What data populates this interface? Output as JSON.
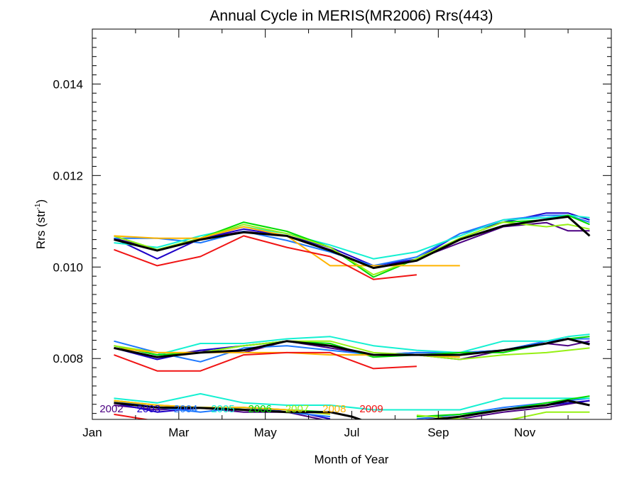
{
  "chart_data": {
    "type": "line",
    "title": "Annual Cycle in MERIS(MR2006) Rrs(443)",
    "xlabel": "Month of Year",
    "ylabel": "Rrs (str",
    "ylabel_sup": "-1",
    "ylabel_close": ")",
    "xlim": [
      0,
      12
    ],
    "ylim": [
      0.00667,
      0.0152
    ],
    "x_ticks": [
      {
        "value": 0,
        "label": "Jan"
      },
      {
        "value": 2,
        "label": "Mar"
      },
      {
        "value": 4,
        "label": "May"
      },
      {
        "value": 6,
        "label": "Jul"
      },
      {
        "value": 8,
        "label": "Sep"
      },
      {
        "value": 10,
        "label": "Nov"
      }
    ],
    "y_ticks": [
      {
        "value": 0.008,
        "label": "0.008"
      },
      {
        "value": 0.01,
        "label": "0.010"
      },
      {
        "value": 0.012,
        "label": "0.012"
      },
      {
        "value": 0.014,
        "label": "0.014"
      }
    ],
    "x_minor_step": 1,
    "y_minor_step": 0.0002,
    "grid": false,
    "legend": [
      {
        "label": "2002",
        "color": "#4B0082"
      },
      {
        "label": "2003",
        "color": "#1E00C8"
      },
      {
        "label": "2004",
        "color": "#1E78FF"
      },
      {
        "label": "2005",
        "color": "#14F0D2"
      },
      {
        "label": "2006",
        "color": "#00DC00"
      },
      {
        "label": "2007",
        "color": "#96F014"
      },
      {
        "label": "2008",
        "color": "#FFB400"
      },
      {
        "label": "2009",
        "color": "#F01414"
      }
    ],
    "series": [
      {
        "name": "2002",
        "color": "#4B0082",
        "groups": [
          {
            "x": [
              0.5,
              1.5,
              2.5,
              3.5,
              4.5,
              5.5,
              6.5,
              7.5,
              8.5,
              9.5,
              10.5,
              11,
              11.5
            ],
            "y": [
              0.01063,
              0.01038,
              0.01062,
              0.01078,
              0.01068,
              0.01038,
              0.00998,
              0.01017,
              0.01053,
              0.01088,
              0.01097,
              0.01079,
              0.01079
            ]
          },
          {
            "x": [
              0.5,
              1.5,
              2.5,
              3.5,
              4.5,
              5.5,
              6.5,
              7.5,
              8.5,
              9.5,
              10.5,
              11,
              11.5
            ],
            "y": [
              0.00823,
              0.00803,
              0.00818,
              0.00813,
              0.00838,
              0.00823,
              0.00808,
              0.00808,
              0.00798,
              0.00818,
              0.00833,
              0.00828,
              0.00838
            ]
          },
          {
            "x": [
              0.5,
              1.5,
              2.5,
              3.5,
              4.5,
              5.5
            ],
            "y": [
              0.00698,
              0.00688,
              0.00692,
              0.00683,
              0.00683,
              0.00663
            ]
          },
          {
            "x": [
              7.5,
              8.5,
              9.5,
              10.5,
              11.5
            ],
            "y": [
              0.00662,
              0.00668,
              0.00683,
              0.00693,
              0.00708
            ]
          }
        ]
      },
      {
        "name": "2003",
        "color": "#1E00C8",
        "groups": [
          {
            "x": [
              0.5,
              1.5,
              2.5,
              3.5,
              4.5,
              5.5,
              6.5,
              7.5,
              8.5,
              9.5,
              10.5,
              11,
              11.5
            ],
            "y": [
              0.01063,
              0.01018,
              0.01062,
              0.01083,
              0.01068,
              0.01043,
              0.01003,
              0.01017,
              0.01073,
              0.01098,
              0.01118,
              0.01118,
              0.01103
            ]
          },
          {
            "x": [
              0.5,
              1.5,
              2.5,
              3.5,
              4.5,
              5.5,
              6.5,
              7.5,
              8.5,
              9.5,
              10.5,
              11,
              11.5
            ],
            "y": [
              0.00823,
              0.00798,
              0.00818,
              0.00828,
              0.00838,
              0.00828,
              0.00808,
              0.00813,
              0.00813,
              0.00818,
              0.00838,
              0.00843,
              0.00833
            ]
          },
          {
            "x": [
              0.5,
              1.5,
              2.5,
              3.5,
              4.5,
              5.5
            ],
            "y": [
              0.00703,
              0.00683,
              0.00692,
              0.00688,
              0.00688,
              0.00668
            ]
          },
          {
            "x": [
              7.5,
              8.5,
              9.5,
              10.5,
              11.5
            ],
            "y": [
              0.00665,
              0.00673,
              0.00688,
              0.00698,
              0.00708
            ]
          }
        ]
      },
      {
        "name": "2004",
        "color": "#1E78FF",
        "groups": [
          {
            "x": [
              0.5,
              1.5,
              2.5,
              3.5,
              4.5,
              5.5,
              6.5,
              7.5,
              8.5,
              9.5,
              10.5,
              11,
              11.5
            ],
            "y": [
              0.01063,
              0.01063,
              0.01053,
              0.01078,
              0.01058,
              0.01033,
              0.01003,
              0.01022,
              0.01073,
              0.01103,
              0.01113,
              0.01113,
              0.01098
            ]
          },
          {
            "x": [
              0.5,
              1.5,
              2.5,
              3.5,
              4.5,
              5.5,
              6.5,
              7.5,
              8.5,
              9.5,
              10.5,
              11,
              11.5
            ],
            "y": [
              0.00838,
              0.00813,
              0.00793,
              0.00823,
              0.00828,
              0.00818,
              0.00808,
              0.00813,
              0.00813,
              0.00818,
              0.00838,
              0.00843,
              0.00843
            ]
          },
          {
            "x": [
              0.5,
              1.5,
              2.5,
              3.5,
              4.5,
              5.5
            ],
            "y": [
              0.00708,
              0.00693,
              0.00683,
              0.00693,
              0.00683,
              0.00673
            ]
          },
          {
            "x": [
              7.5,
              8.5,
              9.5,
              10.5,
              11.5
            ],
            "y": [
              0.00668,
              0.00678,
              0.00693,
              0.00703,
              0.00713
            ]
          }
        ]
      },
      {
        "name": "2005",
        "color": "#14F0D2",
        "groups": [
          {
            "x": [
              0.5,
              1.5,
              2.5,
              3.5,
              4.5,
              5.5,
              6.5,
              7.5,
              8.5,
              9.5,
              10.5,
              11,
              11.5
            ],
            "y": [
              0.01053,
              0.01043,
              0.01068,
              0.01088,
              0.01073,
              0.01048,
              0.01018,
              0.01033,
              0.01068,
              0.01103,
              0.01108,
              0.01113,
              0.01108
            ]
          },
          {
            "x": [
              0.5,
              1.5,
              2.5,
              3.5,
              4.5,
              5.5,
              6.5,
              7.5,
              8.5,
              9.5,
              10.5,
              11,
              11.5
            ],
            "y": [
              0.00828,
              0.00808,
              0.00833,
              0.00833,
              0.00843,
              0.00848,
              0.00828,
              0.00818,
              0.00813,
              0.00838,
              0.00838,
              0.00848,
              0.00853
            ]
          },
          {
            "x": [
              0.5,
              1.5,
              2.5,
              3.5,
              4.5,
              5.5,
              6.5,
              7.5,
              8.5,
              9.5,
              10.5,
              11,
              11.5
            ],
            "y": [
              0.00713,
              0.00703,
              0.00723,
              0.00703,
              0.00698,
              0.00698,
              0.00688,
              0.00688,
              0.00688,
              0.00713,
              0.00713,
              0.00713,
              0.00713
            ]
          }
        ]
      },
      {
        "name": "2006",
        "color": "#00DC00",
        "groups": [
          {
            "x": [
              0.5,
              1.5,
              2.5,
              3.5,
              4.5,
              5.5,
              6.5,
              7.5,
              8.5,
              9.5,
              10.5,
              11,
              11.5
            ],
            "y": [
              0.01068,
              0.01038,
              0.01063,
              0.01098,
              0.01078,
              0.01043,
              0.00978,
              0.01018,
              0.01063,
              0.01098,
              0.01103,
              0.01113,
              0.01093
            ]
          },
          {
            "x": [
              0.5,
              1.5,
              2.5,
              3.5,
              4.5,
              5.5,
              6.5,
              7.5,
              8.5,
              9.5,
              10.5,
              11,
              11.5
            ],
            "y": [
              0.00828,
              0.00808,
              0.00813,
              0.00828,
              0.00838,
              0.00833,
              0.00803,
              0.00808,
              0.00813,
              0.00813,
              0.00833,
              0.00843,
              0.00848
            ]
          },
          {
            "x": [
              0.5,
              1.5,
              2.5,
              3.5,
              4.5,
              5.5
            ],
            "y": [
              0.00708,
              0.00698,
              0.00693,
              0.00693,
              0.00688,
              0.00683
            ]
          },
          {
            "x": [
              7.5,
              8.5,
              9.5,
              10.5,
              11.5
            ],
            "y": [
              0.00673,
              0.00678,
              0.00688,
              0.00703,
              0.00718
            ]
          }
        ]
      },
      {
        "name": "2007",
        "color": "#96F014",
        "groups": [
          {
            "x": [
              0.5,
              1.5,
              2.5,
              3.5,
              4.5,
              5.5,
              6.5,
              7.5,
              8.5,
              9.5,
              10.5,
              11,
              11.5
            ],
            "y": [
              0.01068,
              0.01038,
              0.01063,
              0.01093,
              0.01073,
              0.01043,
              0.00983,
              0.01018,
              0.01063,
              0.01098,
              0.01088,
              0.01093,
              0.01083
            ]
          },
          {
            "x": [
              0.5,
              1.5,
              2.5,
              3.5,
              4.5,
              5.5,
              6.5,
              7.5,
              8.5,
              9.5,
              10.5,
              11,
              11.5
            ],
            "y": [
              0.00828,
              0.00813,
              0.00813,
              0.00828,
              0.00838,
              0.00838,
              0.00813,
              0.00808,
              0.00798,
              0.00808,
              0.00813,
              0.00818,
              0.00823
            ]
          },
          {
            "x": [
              0.5,
              1.5,
              2.5,
              3.5,
              4.5,
              5.5
            ],
            "y": [
              0.00708,
              0.00698,
              0.00693,
              0.00693,
              0.00688,
              0.00678
            ]
          },
          {
            "x": [
              7.5,
              8.5,
              9.5,
              10.5,
              11.5
            ],
            "y": [
              0.00676,
              0.00668,
              0.00663,
              0.00683,
              0.00683
            ]
          }
        ]
      },
      {
        "name": "2008",
        "color": "#FFB400",
        "groups": [
          {
            "x": [
              0.5,
              1.5,
              2.5,
              3.5,
              4.5,
              5.5,
              6.5,
              7.5,
              8.5
            ],
            "y": [
              0.01068,
              0.01063,
              0.01063,
              0.01088,
              0.01068,
              0.01003,
              0.01003,
              0.01003,
              0.01003
            ]
          },
          {
            "x": [
              0.5,
              1.5,
              2.5,
              3.5,
              4.5,
              5.5,
              6.5,
              7.5,
              8.5
            ],
            "y": [
              0.00823,
              0.00813,
              0.00813,
              0.00813,
              0.00813,
              0.00808,
              0.00808,
              0.00808,
              0.00803
            ]
          },
          {
            "x": [
              0.5,
              1.5,
              2.5,
              3.5,
              4.5,
              5.5
            ],
            "y": [
              0.00708,
              0.00698,
              0.00693,
              0.00693,
              0.00688,
              0.0068
            ]
          }
        ]
      },
      {
        "name": "2009",
        "color": "#F01414",
        "groups": [
          {
            "x": [
              0.5,
              1.5,
              2.5,
              3.5,
              4.5,
              5.5,
              6.5,
              7.5
            ],
            "y": [
              0.01038,
              0.01003,
              0.01023,
              0.01068,
              0.01043,
              0.01023,
              0.00973,
              0.00983
            ]
          },
          {
            "x": [
              0.5,
              1.5,
              2.5,
              3.5,
              4.5,
              5.5,
              6.5,
              7.5
            ],
            "y": [
              0.00808,
              0.00773,
              0.00773,
              0.00808,
              0.00813,
              0.00813,
              0.00778,
              0.00783
            ]
          },
          {
            "x": [
              0.5,
              1.5
            ],
            "y": [
              0.00678,
              0.00663
            ]
          }
        ]
      },
      {
        "name": "",
        "color": "#000000",
        "width": 3,
        "groups": [
          {
            "x": [
              0.5,
              1.5,
              2.5,
              3.5,
              4.5,
              5.5,
              6.5,
              7.5,
              8.5,
              9.5,
              10.5,
              11,
              11.5
            ],
            "y": [
              0.0106,
              0.01036,
              0.0106,
              0.01076,
              0.01068,
              0.01036,
              0.00998,
              0.01014,
              0.0106,
              0.0109,
              0.01104,
              0.0111,
              0.01068
            ]
          },
          {
            "x": [
              0.5,
              1.5,
              2.5,
              3.5,
              4.5,
              5.5,
              6.5,
              7.5,
              8.5,
              9.5,
              10.5,
              11,
              11.5
            ],
            "y": [
              0.00823,
              0.00803,
              0.00813,
              0.00818,
              0.00838,
              0.00828,
              0.00808,
              0.00808,
              0.00808,
              0.00818,
              0.00833,
              0.00843,
              0.00831
            ]
          },
          {
            "x": [
              0.5,
              1.5,
              2.5,
              3.5,
              4.5,
              5.5,
              6,
              6.3
            ],
            "y": [
              0.00703,
              0.00693,
              0.00692,
              0.00688,
              0.00683,
              0.00683,
              0.00673,
              0.00663
            ]
          },
          {
            "x": [
              7.5,
              8.5,
              9.5,
              10.5,
              11,
              11.5
            ],
            "y": [
              0.00663,
              0.00673,
              0.00688,
              0.00698,
              0.00708,
              0.00698
            ]
          }
        ]
      }
    ]
  }
}
